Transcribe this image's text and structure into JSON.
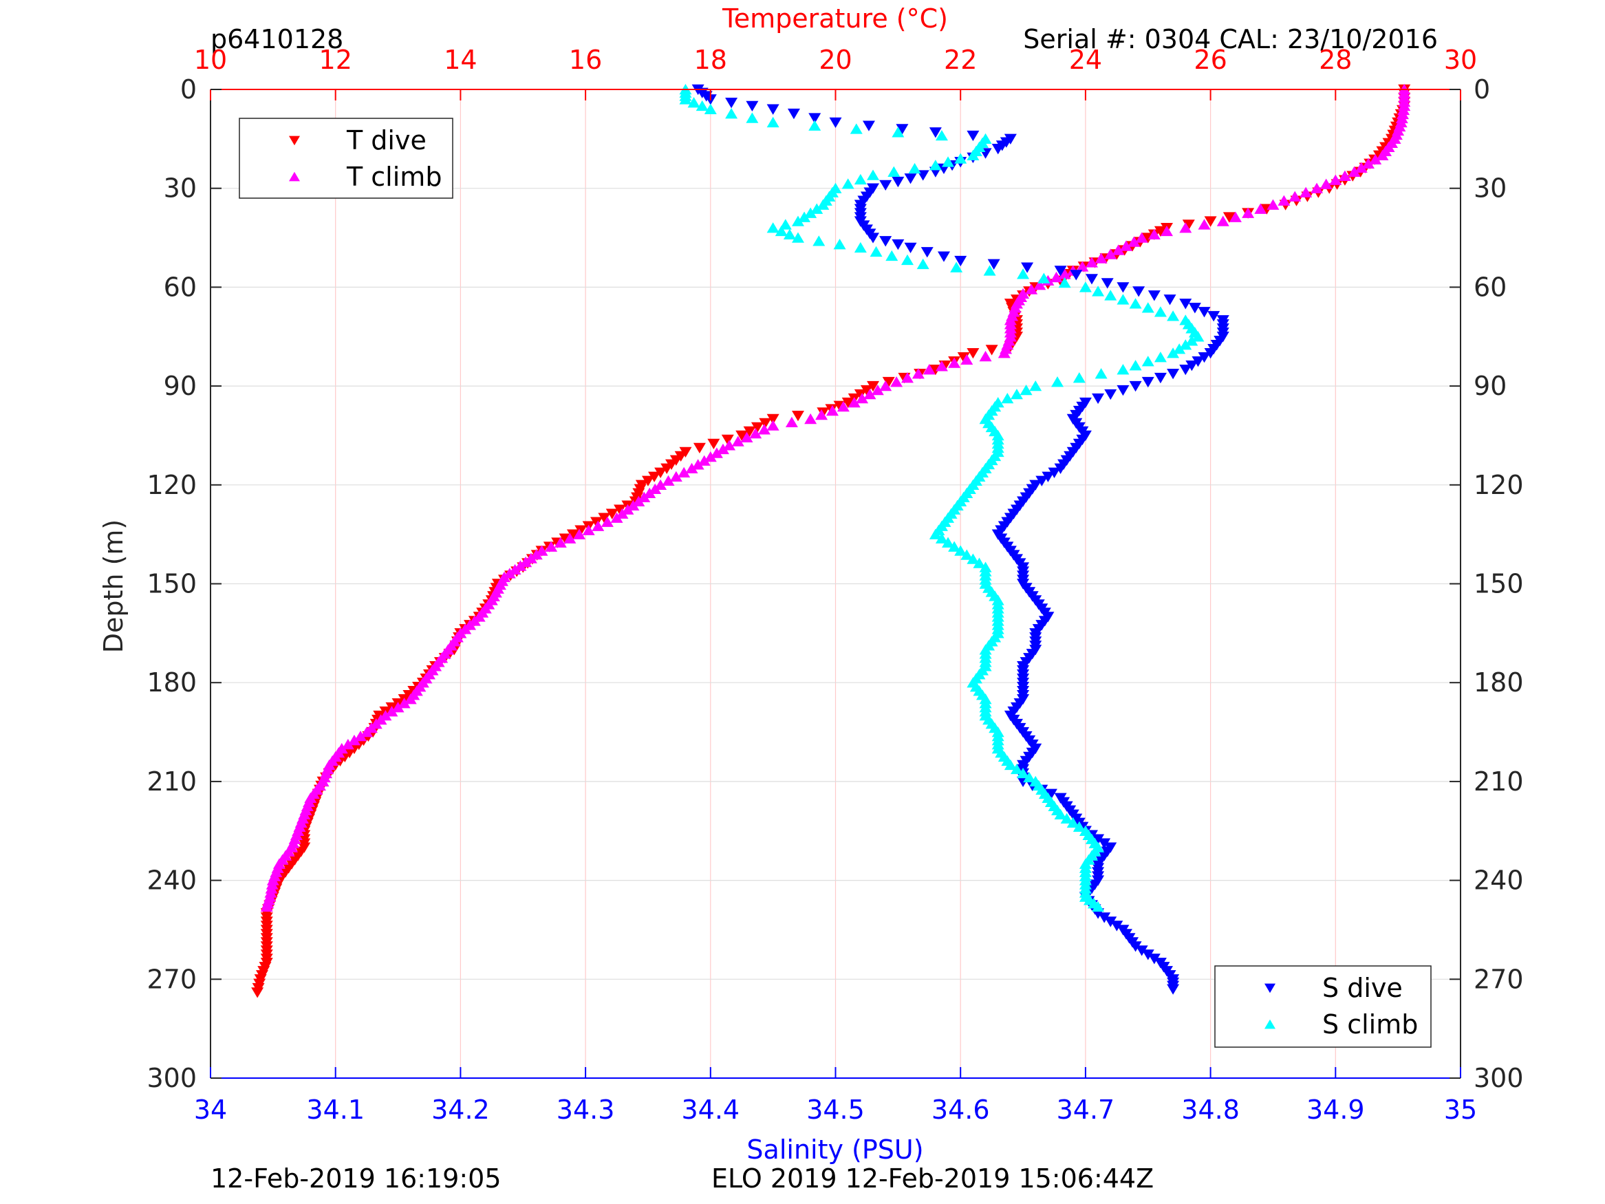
{
  "header": {
    "profile_id": "p6410128",
    "serial": "Serial #: 0304  CAL: 23/10/2016"
  },
  "footer": {
    "plot_time": "12-Feb-2019 16:19:05",
    "mission": "ELO 2019 12-Feb-2019 15:06:44Z"
  },
  "colors": {
    "t_dive": "#ff0000",
    "t_climb": "#ff00ff",
    "s_dive": "#0000ff",
    "s_climb": "#00ffff",
    "temperature_axis": "#ff0000",
    "salinity_axis": "#0000ff",
    "depth_axis": "#262626"
  },
  "chart_data": {
    "type": "scatter",
    "ylabel": "Depth (m)",
    "y_reversed": true,
    "ylim": [
      0,
      300
    ],
    "yticks": [
      0,
      30,
      60,
      90,
      120,
      150,
      180,
      210,
      240,
      270,
      300
    ],
    "grid": true,
    "axes": {
      "temperature": {
        "label": "Temperature (°C)",
        "position": "top",
        "lim": [
          10,
          30
        ],
        "ticks": [
          10,
          12,
          14,
          16,
          18,
          20,
          22,
          24,
          26,
          28,
          30
        ]
      },
      "salinity": {
        "label": "Salinity (PSU)",
        "position": "bottom",
        "lim": [
          34,
          35
        ],
        "ticks": [
          "34",
          "34.1",
          "34.2",
          "34.3",
          "34.4",
          "34.5",
          "34.6",
          "34.7",
          "34.8",
          "34.9",
          "35"
        ]
      }
    },
    "legends": [
      {
        "placement": "top-left",
        "entries": [
          "T dive",
          "T climb"
        ]
      },
      {
        "placement": "bottom-right",
        "entries": [
          "S dive",
          "S climb"
        ]
      }
    ],
    "series": [
      {
        "name": "T dive",
        "axis": "temperature",
        "marker": "triangle-down",
        "points": [
          [
            29.1,
            0
          ],
          [
            29.1,
            5
          ],
          [
            29.0,
            10
          ],
          [
            28.9,
            15
          ],
          [
            28.7,
            20
          ],
          [
            28.4,
            25
          ],
          [
            27.9,
            30
          ],
          [
            27.2,
            35
          ],
          [
            26.0,
            40
          ],
          [
            25.3,
            42
          ],
          [
            25.0,
            45
          ],
          [
            24.5,
            50
          ],
          [
            23.8,
            55
          ],
          [
            23.6,
            58
          ],
          [
            23.2,
            60
          ],
          [
            22.8,
            65
          ],
          [
            22.9,
            70
          ],
          [
            22.9,
            75
          ],
          [
            22.8,
            78
          ],
          [
            22.2,
            80
          ],
          [
            21.6,
            85
          ],
          [
            20.6,
            90
          ],
          [
            20.2,
            95
          ],
          [
            19.8,
            98
          ],
          [
            19.0,
            100
          ],
          [
            18.5,
            105
          ],
          [
            17.6,
            110
          ],
          [
            17.3,
            115
          ],
          [
            16.9,
            120
          ],
          [
            16.8,
            125
          ],
          [
            16.3,
            130
          ],
          [
            15.8,
            135
          ],
          [
            15.3,
            140
          ],
          [
            15.0,
            145
          ],
          [
            14.6,
            150
          ],
          [
            14.5,
            155
          ],
          [
            14.3,
            160
          ],
          [
            14.0,
            165
          ],
          [
            13.9,
            170
          ],
          [
            13.6,
            175
          ],
          [
            13.4,
            180
          ],
          [
            13.1,
            185
          ],
          [
            12.7,
            190
          ],
          [
            12.6,
            195
          ],
          [
            12.3,
            200
          ],
          [
            12.0,
            205
          ],
          [
            11.8,
            210
          ],
          [
            11.7,
            215
          ],
          [
            11.6,
            220
          ],
          [
            11.5,
            225
          ],
          [
            11.5,
            230
          ],
          [
            11.3,
            235
          ],
          [
            11.1,
            240
          ],
          [
            11.0,
            245
          ],
          [
            10.9,
            250
          ],
          [
            10.9,
            255
          ],
          [
            10.9,
            260
          ],
          [
            10.9,
            265
          ],
          [
            10.8,
            270
          ],
          [
            10.75,
            274
          ]
        ]
      },
      {
        "name": "T climb",
        "axis": "temperature",
        "marker": "triangle-up",
        "points": [
          [
            29.1,
            0
          ],
          [
            29.1,
            5
          ],
          [
            29.05,
            10
          ],
          [
            28.95,
            15
          ],
          [
            28.75,
            20
          ],
          [
            28.3,
            25
          ],
          [
            27.7,
            30
          ],
          [
            27.0,
            35
          ],
          [
            26.2,
            40
          ],
          [
            25.3,
            43
          ],
          [
            24.9,
            45
          ],
          [
            24.4,
            50
          ],
          [
            23.8,
            55
          ],
          [
            23.4,
            58
          ],
          [
            23.0,
            62
          ],
          [
            22.9,
            65
          ],
          [
            22.8,
            70
          ],
          [
            22.8,
            75
          ],
          [
            22.7,
            80
          ],
          [
            22.1,
            82
          ],
          [
            21.5,
            85
          ],
          [
            20.8,
            90
          ],
          [
            20.3,
            95
          ],
          [
            19.6,
            100
          ],
          [
            19.0,
            102
          ],
          [
            18.3,
            108
          ],
          [
            17.7,
            115
          ],
          [
            17.2,
            120
          ],
          [
            16.5,
            130
          ],
          [
            15.9,
            135
          ],
          [
            15.3,
            140
          ],
          [
            14.7,
            148
          ],
          [
            14.5,
            155
          ],
          [
            14.3,
            160
          ],
          [
            14.0,
            165
          ],
          [
            13.8,
            170
          ],
          [
            13.6,
            175
          ],
          [
            13.4,
            180
          ],
          [
            13.2,
            185
          ],
          [
            12.8,
            190
          ],
          [
            12.5,
            195
          ],
          [
            12.1,
            200
          ],
          [
            11.9,
            205
          ],
          [
            11.8,
            210
          ],
          [
            11.6,
            215
          ],
          [
            11.5,
            220
          ],
          [
            11.4,
            225
          ],
          [
            11.3,
            230
          ],
          [
            11.1,
            235
          ],
          [
            11.0,
            240
          ],
          [
            10.95,
            245
          ],
          [
            10.9,
            248
          ]
        ]
      },
      {
        "name": "S dive",
        "axis": "salinity",
        "marker": "triangle-down",
        "points": [
          [
            34.39,
            0
          ],
          [
            34.4,
            3
          ],
          [
            34.45,
            6
          ],
          [
            34.5,
            10
          ],
          [
            34.58,
            13
          ],
          [
            34.64,
            15
          ],
          [
            34.63,
            18
          ],
          [
            34.6,
            22
          ],
          [
            34.58,
            25
          ],
          [
            34.55,
            28
          ],
          [
            34.53,
            30
          ],
          [
            34.52,
            35
          ],
          [
            34.52,
            40
          ],
          [
            34.53,
            45
          ],
          [
            34.56,
            48
          ],
          [
            34.6,
            52
          ],
          [
            34.68,
            55
          ],
          [
            34.73,
            60
          ],
          [
            34.78,
            65
          ],
          [
            34.81,
            70
          ],
          [
            34.81,
            75
          ],
          [
            34.8,
            80
          ],
          [
            34.78,
            85
          ],
          [
            34.74,
            90
          ],
          [
            34.7,
            95
          ],
          [
            34.69,
            100
          ],
          [
            34.7,
            105
          ],
          [
            34.69,
            110
          ],
          [
            34.68,
            115
          ],
          [
            34.66,
            120
          ],
          [
            34.65,
            125
          ],
          [
            34.64,
            130
          ],
          [
            34.63,
            135
          ],
          [
            34.64,
            140
          ],
          [
            34.65,
            145
          ],
          [
            34.65,
            150
          ],
          [
            34.66,
            155
          ],
          [
            34.67,
            160
          ],
          [
            34.66,
            165
          ],
          [
            34.66,
            170
          ],
          [
            34.65,
            175
          ],
          [
            34.65,
            180
          ],
          [
            34.65,
            185
          ],
          [
            34.64,
            190
          ],
          [
            34.65,
            195
          ],
          [
            34.66,
            200
          ],
          [
            34.65,
            205
          ],
          [
            34.65,
            210
          ],
          [
            34.68,
            215
          ],
          [
            34.69,
            220
          ],
          [
            34.7,
            225
          ],
          [
            34.72,
            230
          ],
          [
            34.71,
            235
          ],
          [
            34.71,
            240
          ],
          [
            34.7,
            245
          ],
          [
            34.71,
            250
          ],
          [
            34.73,
            255
          ],
          [
            34.74,
            260
          ],
          [
            34.76,
            265
          ],
          [
            34.77,
            270
          ],
          [
            34.77,
            273
          ]
        ]
      },
      {
        "name": "S climb",
        "axis": "salinity",
        "marker": "triangle-up",
        "points": [
          [
            34.38,
            0
          ],
          [
            34.38,
            3
          ],
          [
            34.4,
            6
          ],
          [
            34.45,
            10
          ],
          [
            34.55,
            13
          ],
          [
            34.62,
            15
          ],
          [
            34.61,
            20
          ],
          [
            34.58,
            23
          ],
          [
            34.53,
            26
          ],
          [
            34.5,
            30
          ],
          [
            34.49,
            35
          ],
          [
            34.47,
            40
          ],
          [
            34.45,
            42
          ],
          [
            34.47,
            45
          ],
          [
            34.52,
            48
          ],
          [
            34.57,
            53
          ],
          [
            34.65,
            56
          ],
          [
            34.7,
            60
          ],
          [
            34.74,
            65
          ],
          [
            34.78,
            70
          ],
          [
            34.79,
            75
          ],
          [
            34.77,
            80
          ],
          [
            34.73,
            85
          ],
          [
            34.66,
            90
          ],
          [
            34.63,
            95
          ],
          [
            34.62,
            100
          ],
          [
            34.63,
            105
          ],
          [
            34.63,
            110
          ],
          [
            34.62,
            115
          ],
          [
            34.61,
            120
          ],
          [
            34.6,
            125
          ],
          [
            34.59,
            130
          ],
          [
            34.58,
            135
          ],
          [
            34.6,
            140
          ],
          [
            34.62,
            145
          ],
          [
            34.62,
            150
          ],
          [
            34.63,
            155
          ],
          [
            34.63,
            160
          ],
          [
            34.63,
            165
          ],
          [
            34.62,
            170
          ],
          [
            34.62,
            175
          ],
          [
            34.61,
            180
          ],
          [
            34.62,
            185
          ],
          [
            34.62,
            190
          ],
          [
            34.63,
            195
          ],
          [
            34.63,
            200
          ],
          [
            34.64,
            205
          ],
          [
            34.66,
            210
          ],
          [
            34.67,
            215
          ],
          [
            34.68,
            220
          ],
          [
            34.7,
            225
          ],
          [
            34.71,
            230
          ],
          [
            34.7,
            235
          ],
          [
            34.7,
            240
          ],
          [
            34.7,
            245
          ],
          [
            34.71,
            248
          ]
        ]
      }
    ]
  }
}
